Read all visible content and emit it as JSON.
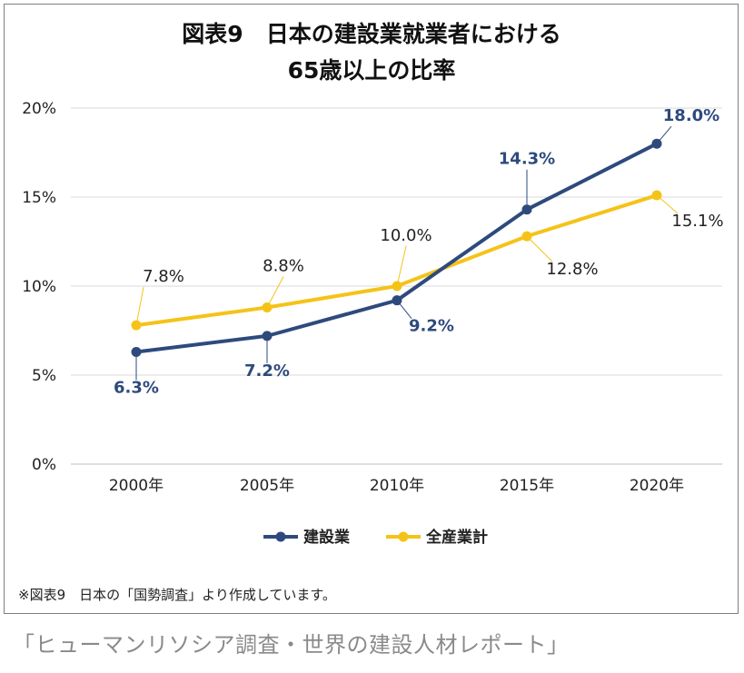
{
  "chart_data": {
    "type": "line",
    "title_lines": [
      "図表9　日本の建設業就業者における",
      "65歳以上の比率"
    ],
    "categories": [
      "2000年",
      "2005年",
      "2010年",
      "2015年",
      "2020年"
    ],
    "y_ticks": [
      "0%",
      "5%",
      "10%",
      "15%",
      "20%"
    ],
    "ylim": [
      0,
      20
    ],
    "grid": true,
    "legend_position": "bottom",
    "series": [
      {
        "name": "建設業",
        "color": "#2e4a7d",
        "values": [
          6.3,
          7.2,
          9.2,
          14.3,
          18.0
        ],
        "labels": [
          "6.3%",
          "7.2%",
          "9.2%",
          "14.3%",
          "18.0%"
        ]
      },
      {
        "name": "全産業計",
        "color": "#f5c318",
        "values": [
          7.8,
          8.8,
          10.0,
          12.8,
          15.1
        ],
        "labels": [
          "7.8%",
          "8.8%",
          "10.0%",
          "12.8%",
          "15.1%"
        ]
      }
    ]
  },
  "note": "※図表9　日本の「国勢調査」より作成しています。",
  "caption": "「ヒューマンリソシア調査・世界の建設人材レポート」"
}
